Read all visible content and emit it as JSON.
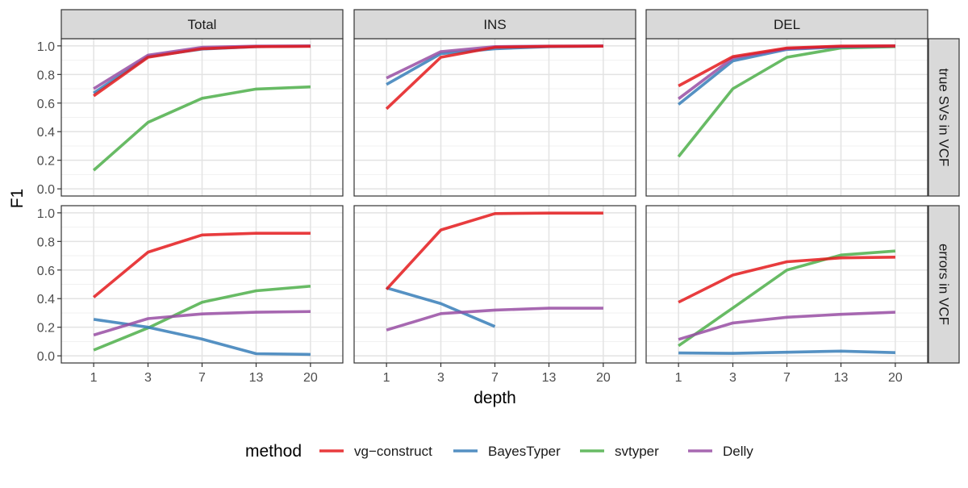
{
  "chart_data": {
    "type": "line",
    "x": [
      1,
      3,
      7,
      13,
      20
    ],
    "ylim": [
      -0.05,
      1.05
    ],
    "yticks": [
      "0.0",
      "0.2",
      "0.4",
      "0.6",
      "0.8",
      "1.0"
    ],
    "xlabel": "depth",
    "ylabel": "F1",
    "legend": {
      "title": "method",
      "position": "bottom"
    },
    "grid": true,
    "columns": [
      "Total",
      "INS",
      "DEL"
    ],
    "rows": [
      "true SVs in VCF",
      "errors in VCF"
    ],
    "methods": [
      {
        "name": "vg−construct",
        "color": "#e41a1c"
      },
      {
        "name": "BayesTyper",
        "color": "#377eb8"
      },
      {
        "name": "svtyper",
        "color": "#4daf4a"
      },
      {
        "name": "Delly",
        "color": "#984ea3"
      }
    ],
    "panels": [
      {
        "row": "true SVs in VCF",
        "col": "Total",
        "series": [
          {
            "name": "vg−construct",
            "values": [
              0.65,
              0.92,
              0.98,
              0.995,
              0.997
            ]
          },
          {
            "name": "BayesTyper",
            "values": [
              0.67,
              0.925,
              0.978,
              0.995,
              0.998
            ]
          },
          {
            "name": "svtyper",
            "values": [
              0.13,
              0.465,
              0.633,
              0.698,
              0.713
            ]
          },
          {
            "name": "Delly",
            "values": [
              0.7,
              0.935,
              0.99,
              0.998,
              1.0
            ]
          }
        ]
      },
      {
        "row": "true SVs in VCF",
        "col": "INS",
        "series": [
          {
            "name": "vg−construct",
            "values": [
              0.56,
              0.92,
              0.99,
              0.997,
              0.998
            ]
          },
          {
            "name": "BayesTyper",
            "values": [
              0.73,
              0.945,
              0.98,
              0.995,
              0.998
            ]
          },
          {
            "name": "Delly",
            "values": [
              0.775,
              0.96,
              0.995,
              0.998,
              1.0
            ]
          }
        ]
      },
      {
        "row": "true SVs in VCF",
        "col": "DEL",
        "series": [
          {
            "name": "vg−construct",
            "values": [
              0.72,
              0.925,
              0.985,
              0.998,
              1.0
            ]
          },
          {
            "name": "BayesTyper",
            "values": [
              0.59,
              0.895,
              0.975,
              0.993,
              0.998
            ]
          },
          {
            "name": "svtyper",
            "values": [
              0.225,
              0.7,
              0.92,
              0.985,
              0.995
            ]
          },
          {
            "name": "Delly",
            "values": [
              0.63,
              0.915,
              0.98,
              0.997,
              1.0
            ]
          }
        ]
      },
      {
        "row": "errors in VCF",
        "col": "Total",
        "series": [
          {
            "name": "vg−construct",
            "values": [
              0.41,
              0.725,
              0.845,
              0.857,
              0.857
            ]
          },
          {
            "name": "BayesTyper",
            "values": [
              0.255,
              0.2,
              0.117,
              0.015,
              0.01
            ]
          },
          {
            "name": "svtyper",
            "values": [
              0.04,
              0.195,
              0.375,
              0.455,
              0.487
            ]
          },
          {
            "name": "Delly",
            "values": [
              0.145,
              0.26,
              0.293,
              0.305,
              0.31
            ]
          }
        ]
      },
      {
        "row": "errors in VCF",
        "col": "INS",
        "series": [
          {
            "name": "vg−construct",
            "values": [
              0.465,
              0.88,
              0.995,
              0.998,
              0.998
            ]
          },
          {
            "name": "BayesTyper",
            "values": [
              0.475,
              0.365,
              0.205,
              null,
              null
            ]
          },
          {
            "name": "Delly",
            "values": [
              0.18,
              0.295,
              0.32,
              0.333,
              0.333
            ]
          }
        ]
      },
      {
        "row": "errors in VCF",
        "col": "DEL",
        "series": [
          {
            "name": "vg−construct",
            "values": [
              0.375,
              0.565,
              0.658,
              0.685,
              0.69
            ]
          },
          {
            "name": "BayesTyper",
            "values": [
              0.02,
              0.017,
              0.025,
              0.033,
              0.022
            ]
          },
          {
            "name": "svtyper",
            "values": [
              0.07,
              0.335,
              0.6,
              0.705,
              0.733
            ]
          },
          {
            "name": "Delly",
            "values": [
              0.115,
              0.23,
              0.27,
              0.29,
              0.305
            ]
          }
        ]
      }
    ]
  }
}
